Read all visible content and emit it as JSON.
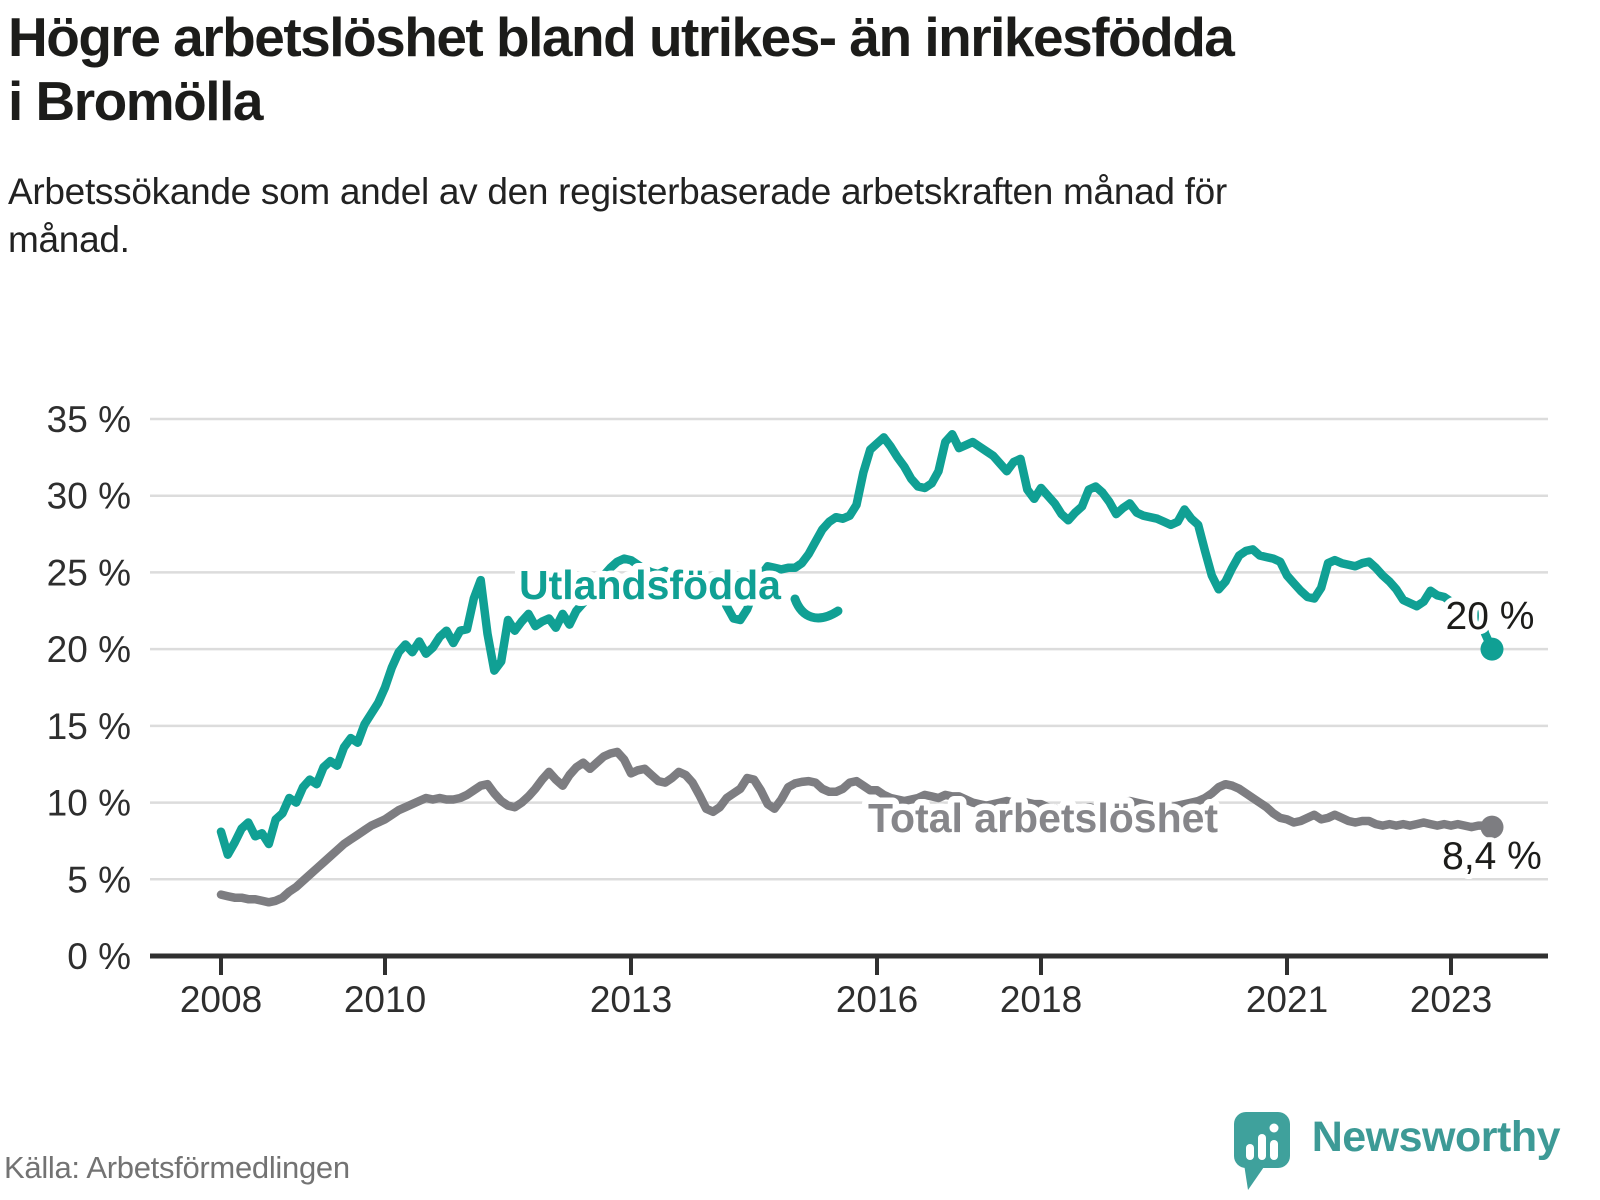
{
  "header": {
    "title": "Högre arbetslöshet bland utrikes- än inrikesfödda i Bromölla",
    "subtitle": "Arbetssökande som andel av den registerbaserade arbetskraften månad för månad."
  },
  "chart_data": {
    "type": "line",
    "title": "",
    "xlabel": "",
    "ylabel": "",
    "ylim": [
      0,
      35
    ],
    "grid": "horizontal",
    "legend_position": "inline-labels",
    "y_ticks": [
      0,
      5,
      10,
      15,
      20,
      25,
      30,
      35
    ],
    "y_tick_labels": [
      "0 %",
      "5 %",
      "10 %",
      "15 %",
      "20 %",
      "25 %",
      "30 %",
      "35 %"
    ],
    "x_tick_years": [
      2008,
      2010,
      2013,
      2016,
      2018,
      2021,
      2023
    ],
    "x_start_year": 2008,
    "x_interval": "monthly",
    "series": [
      {
        "name": "Utlandsfödda",
        "color": "#10A094",
        "end_label": "20 %",
        "values": [
          8.1,
          6.6,
          7.4,
          8.3,
          8.7,
          7.8,
          8.0,
          7.3,
          8.9,
          9.3,
          10.3,
          10.0,
          11.0,
          11.5,
          11.2,
          12.3,
          12.7,
          12.4,
          13.6,
          14.2,
          13.9,
          15.1,
          15.8,
          16.5,
          17.5,
          18.8,
          19.8,
          20.3,
          19.8,
          20.5,
          19.7,
          20.1,
          20.8,
          21.2,
          20.4,
          21.2,
          21.3,
          23.3,
          24.5,
          21.0,
          18.6,
          19.2,
          21.9,
          21.2,
          21.8,
          22.3,
          21.5,
          21.8,
          22.0,
          21.4,
          22.3,
          21.6,
          22.5,
          23.0,
          23.6,
          24.2,
          24.8,
          25.3,
          25.7,
          25.9,
          25.8,
          25.5,
          25.2,
          25.0,
          24.9,
          25.1,
          24.8,
          24.9,
          25.0,
          24.8,
          24.7,
          24.6,
          24.6,
          23.8,
          22.8,
          22.0,
          21.9,
          22.6,
          23.8,
          24.8,
          25.4,
          25.3,
          25.2,
          25.3,
          25.3,
          25.6,
          26.2,
          27.0,
          27.8,
          28.3,
          28.6,
          28.5,
          28.7,
          29.4,
          31.5,
          33.0,
          33.4,
          33.8,
          33.2,
          32.5,
          31.9,
          31.1,
          30.6,
          30.5,
          30.8,
          31.6,
          33.5,
          34.0,
          33.1,
          33.3,
          33.5,
          33.2,
          32.9,
          32.6,
          32.1,
          31.6,
          32.2,
          32.4,
          30.4,
          29.8,
          30.5,
          30.0,
          29.5,
          28.8,
          28.4,
          28.9,
          29.3,
          30.4,
          30.6,
          30.2,
          29.6,
          28.8,
          29.2,
          29.5,
          28.9,
          28.7,
          28.6,
          28.5,
          28.3,
          28.1,
          28.3,
          29.1,
          28.5,
          28.1,
          26.4,
          24.8,
          23.9,
          24.4,
          25.3,
          26.1,
          26.4,
          26.5,
          26.1,
          26.0,
          25.9,
          25.7,
          24.8,
          24.3,
          23.8,
          23.4,
          23.3,
          24.0,
          25.6,
          25.8,
          25.6,
          25.5,
          25.4,
          25.6,
          25.7,
          25.3,
          24.8,
          24.4,
          23.9,
          23.2,
          23.0,
          22.8,
          23.1,
          23.8,
          23.5,
          23.4,
          23.1,
          22.9,
          22.7,
          22.6,
          22.4,
          21.0,
          20.0
        ]
      },
      {
        "name": "Total arbetslöshet",
        "color": "#7D7D81",
        "end_label": "8,4 %",
        "values": [
          4.0,
          3.9,
          3.8,
          3.8,
          3.7,
          3.7,
          3.6,
          3.5,
          3.6,
          3.8,
          4.2,
          4.5,
          4.9,
          5.3,
          5.7,
          6.1,
          6.5,
          6.9,
          7.3,
          7.6,
          7.9,
          8.2,
          8.5,
          8.7,
          8.9,
          9.2,
          9.5,
          9.7,
          9.9,
          10.1,
          10.3,
          10.2,
          10.3,
          10.2,
          10.2,
          10.3,
          10.5,
          10.8,
          11.1,
          11.2,
          10.6,
          10.1,
          9.8,
          9.7,
          10.0,
          10.4,
          10.9,
          11.5,
          12.0,
          11.5,
          11.1,
          11.8,
          12.3,
          12.6,
          12.2,
          12.6,
          13.0,
          13.2,
          13.3,
          12.8,
          11.9,
          12.1,
          12.2,
          11.8,
          11.4,
          11.3,
          11.6,
          12.0,
          11.8,
          11.3,
          10.5,
          9.6,
          9.4,
          9.7,
          10.3,
          10.6,
          10.9,
          11.6,
          11.5,
          10.8,
          9.9,
          9.6,
          10.2,
          11.0,
          11.25,
          11.35,
          11.4,
          11.3,
          10.9,
          10.7,
          10.7,
          10.9,
          11.3,
          11.4,
          11.1,
          10.8,
          10.8,
          10.5,
          10.3,
          10.2,
          10.1,
          10.2,
          10.3,
          10.5,
          10.4,
          10.3,
          10.5,
          10.4,
          10.4,
          10.2,
          10.0,
          9.9,
          9.8,
          9.9,
          10.0,
          10.1,
          10.0,
          10.1,
          10.0,
          9.9,
          9.9,
          9.7,
          9.6,
          9.5,
          9.4,
          9.5,
          9.6,
          9.7,
          9.6,
          9.7,
          9.8,
          9.9,
          10.0,
          10.1,
          10.0,
          9.9,
          9.8,
          9.7,
          9.6,
          9.7,
          9.8,
          9.9,
          10.0,
          10.1,
          10.3,
          10.6,
          11.0,
          11.2,
          11.1,
          10.9,
          10.6,
          10.3,
          10.0,
          9.7,
          9.3,
          9.0,
          8.9,
          8.7,
          8.8,
          9.0,
          9.2,
          8.9,
          9.0,
          9.2,
          9.0,
          8.8,
          8.7,
          8.8,
          8.8,
          8.6,
          8.5,
          8.6,
          8.5,
          8.6,
          8.5,
          8.6,
          8.7,
          8.6,
          8.5,
          8.6,
          8.5,
          8.6,
          8.5,
          8.4,
          8.5,
          8.5,
          8.4
        ]
      }
    ]
  },
  "footer": {
    "source": "Källa: Arbetsförmedlingen",
    "brand": "Newsworthy"
  }
}
